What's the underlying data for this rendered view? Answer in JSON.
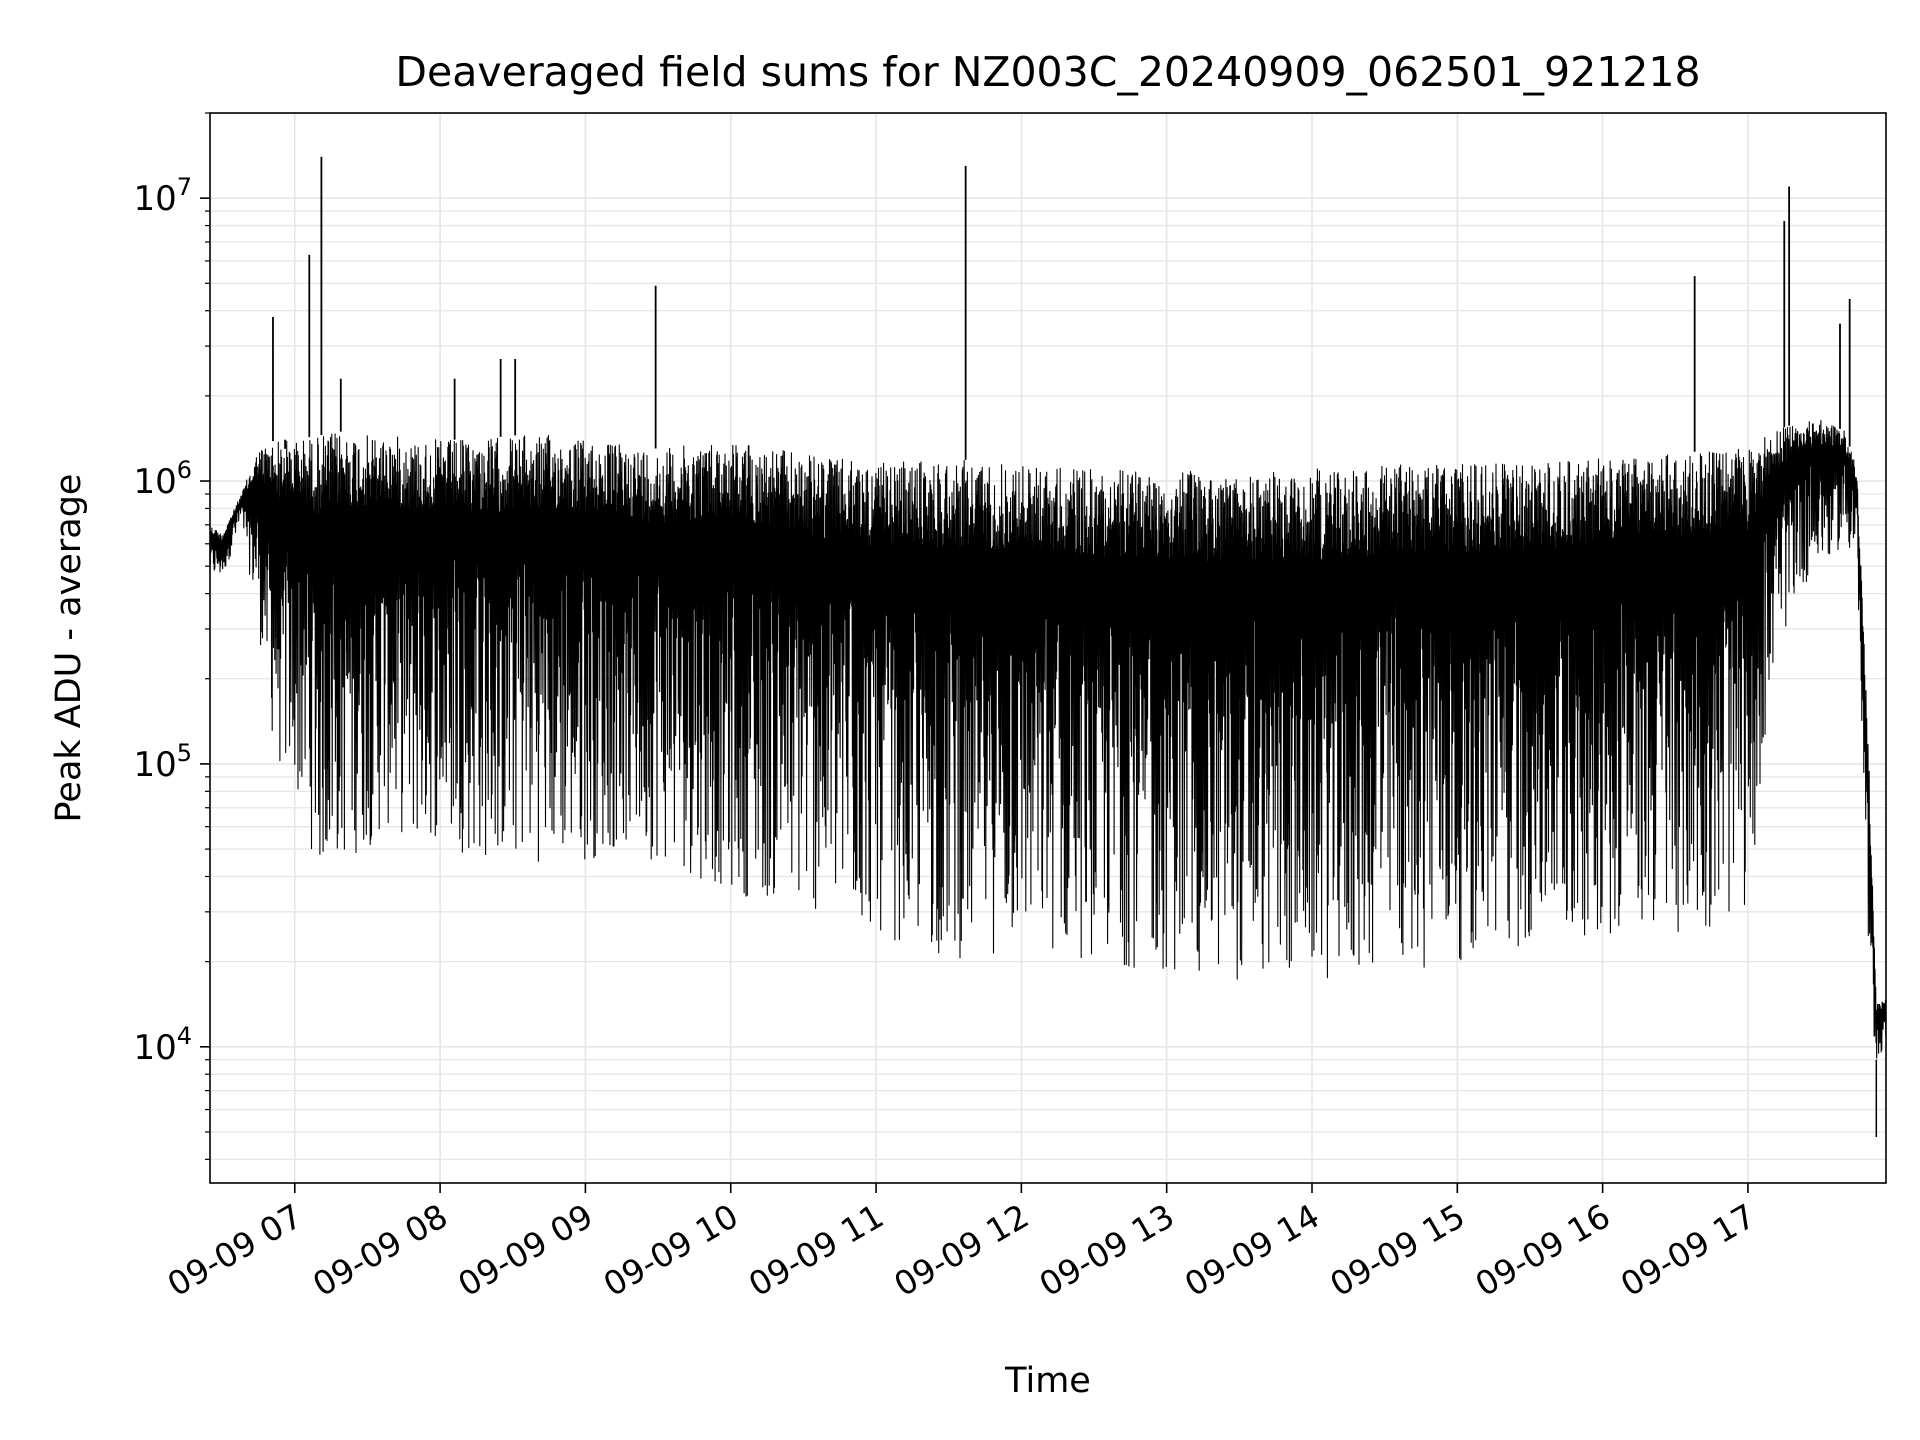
{
  "chart_data": {
    "type": "line",
    "title": "Deaveraged field sums for NZ003C_20240909_062501_921218",
    "xlabel": "Time",
    "ylabel": "Peak ADU - average",
    "yscale": "log",
    "ylim": [
      3300,
      20000000
    ],
    "xlim": [
      "2024-09-09 06:25",
      "2024-09-09 17:57"
    ],
    "grid": true,
    "legend": "none",
    "line_color": "#000000",
    "grid_color": "#e6e6e6",
    "x_ticks": [
      "2024-09-09 07:00",
      "2024-09-09 08:00",
      "2024-09-09 09:00",
      "2024-09-09 10:00",
      "2024-09-09 11:00",
      "2024-09-09 12:00",
      "2024-09-09 13:00",
      "2024-09-09 14:00",
      "2024-09-09 15:00",
      "2024-09-09 16:00",
      "2024-09-09 17:00"
    ],
    "x_tick_labels": [
      "09-09 07",
      "09-09 08",
      "09-09 09",
      "09-09 10",
      "09-09 11",
      "09-09 12",
      "09-09 13",
      "09-09 14",
      "09-09 15",
      "09-09 16",
      "09-09 17"
    ],
    "y_ticks": [
      10000,
      100000,
      1000000,
      10000000
    ],
    "y_tick_labels": [
      {
        "base": "10",
        "exp": "4"
      },
      {
        "base": "10",
        "exp": "5"
      },
      {
        "base": "10",
        "exp": "6"
      },
      {
        "base": "10",
        "exp": "7"
      }
    ],
    "series": [
      {
        "x": [
          "2024-09-09 06:25",
          "2024-09-09 06:30",
          "2024-09-09 06:38",
          "2024-09-09 06:45",
          "2024-09-09 06:52",
          "2024-09-09 07:00",
          "2024-09-09 07:10",
          "2024-09-09 07:20",
          "2024-09-09 07:30",
          "2024-09-09 07:40",
          "2024-09-09 07:50",
          "2024-09-09 08:00",
          "2024-09-09 08:15",
          "2024-09-09 08:30",
          "2024-09-09 08:45",
          "2024-09-09 09:00",
          "2024-09-09 09:15",
          "2024-09-09 09:30",
          "2024-09-09 09:45",
          "2024-09-09 10:00",
          "2024-09-09 10:30",
          "2024-09-09 11:00",
          "2024-09-09 11:30",
          "2024-09-09 12:00",
          "2024-09-09 12:30",
          "2024-09-09 13:00",
          "2024-09-09 13:30",
          "2024-09-09 14:00",
          "2024-09-09 14:30",
          "2024-09-09 15:00",
          "2024-09-09 15:30",
          "2024-09-09 16:00",
          "2024-09-09 16:30",
          "2024-09-09 16:50",
          "2024-09-09 17:00",
          "2024-09-09 17:10",
          "2024-09-09 17:20",
          "2024-09-09 17:30",
          "2024-09-09 17:40",
          "2024-09-09 17:45",
          "2024-09-09 17:50",
          "2024-09-09 17:53",
          "2024-09-09 17:57"
        ],
        "upper": [
          700000,
          650000,
          900000,
          1300000,
          1400000,
          1400000,
          1450000,
          1500000,
          1450000,
          1450000,
          1400000,
          1400000,
          1400000,
          1450000,
          1450000,
          1400000,
          1350000,
          1300000,
          1350000,
          1400000,
          1250000,
          1150000,
          1200000,
          1150000,
          1100000,
          1100000,
          1050000,
          1100000,
          1150000,
          1150000,
          1150000,
          1200000,
          1250000,
          1300000,
          1300000,
          1500000,
          1600000,
          1650000,
          1500000,
          1100000,
          100000,
          14000,
          15000
        ],
        "lower": [
          450000,
          450000,
          700000,
          300000,
          100000,
          80000,
          40000,
          45000,
          50000,
          60000,
          50000,
          55000,
          45000,
          45000,
          45000,
          45000,
          50000,
          45000,
          40000,
          35000,
          30000,
          25000,
          20000,
          22000,
          20000,
          18000,
          17000,
          17000,
          18000,
          20000,
          22000,
          25000,
          25000,
          27000,
          30000,
          200000,
          400000,
          500000,
          600000,
          500000,
          15000,
          9000,
          10000
        ]
      }
    ],
    "spikes": [
      {
        "x": "2024-09-09 06:51",
        "y": 3800000
      },
      {
        "x": "2024-09-09 06:56",
        "y": 1300000
      },
      {
        "x": "2024-09-09 07:06",
        "y": 6300000
      },
      {
        "x": "2024-09-09 07:11",
        "y": 14000000
      },
      {
        "x": "2024-09-09 07:19",
        "y": 2300000
      },
      {
        "x": "2024-09-09 08:06",
        "y": 2300000
      },
      {
        "x": "2024-09-09 08:25",
        "y": 2700000
      },
      {
        "x": "2024-09-09 08:31",
        "y": 2700000
      },
      {
        "x": "2024-09-09 09:29",
        "y": 4900000
      },
      {
        "x": "2024-09-09 11:37",
        "y": 13000000
      },
      {
        "x": "2024-09-09 16:38",
        "y": 5300000
      },
      {
        "x": "2024-09-09 17:15",
        "y": 8300000
      },
      {
        "x": "2024-09-09 17:17",
        "y": 11000000
      },
      {
        "x": "2024-09-09 17:38",
        "y": 3600000
      },
      {
        "x": "2024-09-09 17:42",
        "y": 4400000
      }
    ],
    "dips": [
      {
        "x": "2024-09-09 17:53",
        "y": 4800
      }
    ]
  }
}
